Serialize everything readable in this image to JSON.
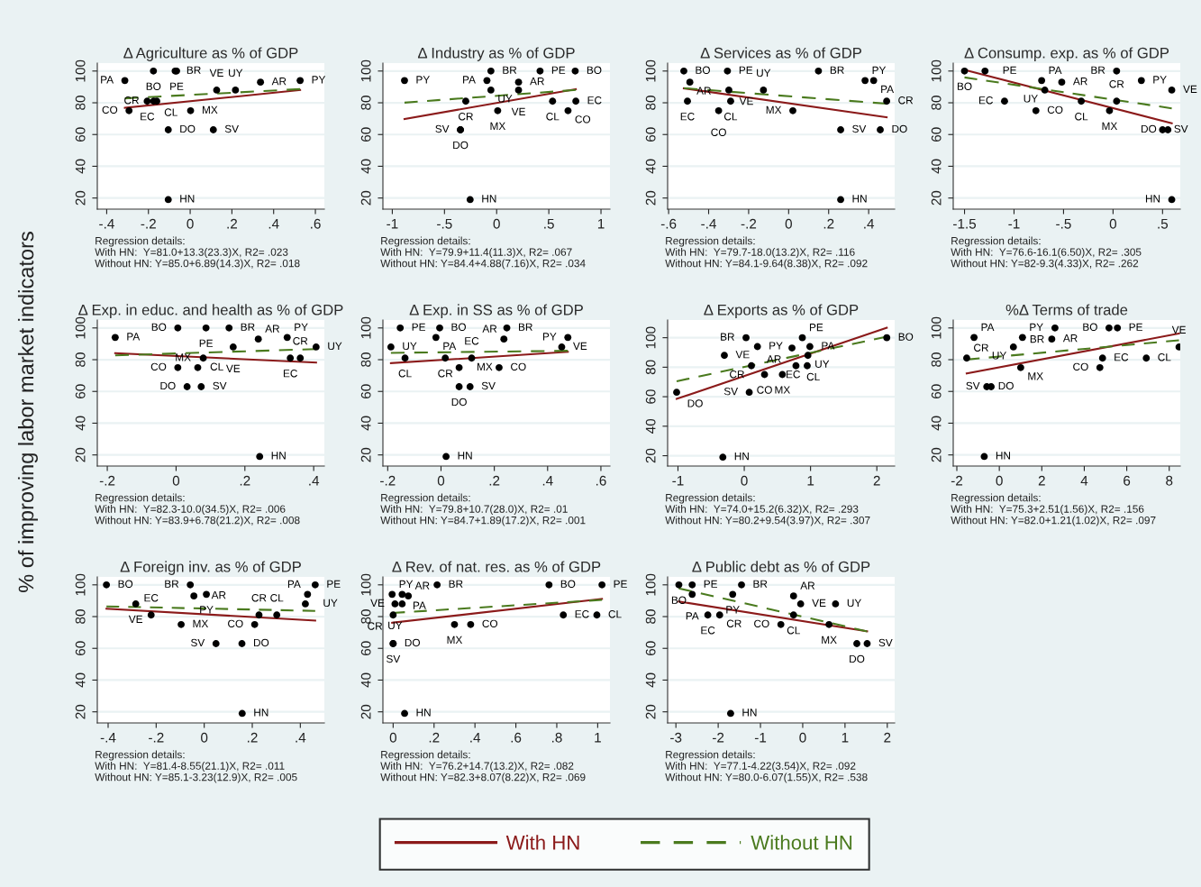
{
  "chart_data": [
    {
      "type": "scatter",
      "title": "Δ Agriculture as % of GDP",
      "xlim": [
        -0.445,
        0.643
      ],
      "xticks": [
        {
          "value": -0.4,
          "label": "-.4"
        },
        {
          "value": -0.2,
          "label": "-.2"
        },
        0,
        {
          "value": 0.2,
          "label": ".2"
        },
        {
          "value": 0.4,
          "label": ".4"
        },
        {
          "value": 0.6,
          "label": ".6"
        }
      ],
      "ylim": [
        13,
        105
      ],
      "yticks": [
        20,
        40,
        60,
        80,
        100
      ],
      "grid": "y",
      "series": [
        {
          "color": "#000000",
          "marker": "circle",
          "x": [
            -0.313,
            -0.176,
            -0.072,
            -0.065,
            -0.293,
            -0.206,
            -0.175,
            -0.16,
            -0.105,
            -0.105,
            0.002,
            0.111,
            0.127,
            0.217,
            0.337,
            0.527
          ],
          "values": [
            94,
            100,
            100,
            100,
            75,
            81,
            81,
            81,
            63,
            19,
            75,
            63,
            88,
            88,
            93,
            94
          ],
          "value_labels": [
            "PA",
            "BO",
            "BR",
            "PE",
            "CO",
            "EC",
            "CL",
            "CR",
            "DO",
            "HN",
            "MX",
            "SV",
            "VE",
            "UY",
            "AR",
            "PY"
          ]
        },
        {
          "type": "line",
          "color": "#8b1a1a",
          "line_style": "solid",
          "x": [
            -0.313,
            0.527
          ],
          "values": [
            76.8,
            88.0
          ]
        },
        {
          "type": "line",
          "color": "#4a7a1e",
          "line_style": "dashed",
          "x": [
            -0.313,
            0.527
          ],
          "values": [
            82.8,
            88.6
          ]
        }
      ],
      "annotations": [
        "Regression details:",
        "With HN:  Y=81.0+13.3(23.3)X, R2= .023",
        "Without HN: Y=85.0+6.89(14.3)X, R2= .018"
      ]
    },
    {
      "type": "scatter",
      "title": "Δ Industry as % of GDP",
      "xlim": [
        -1.09,
        1.086
      ],
      "xticks": [
        -1,
        {
          "value": -0.5,
          "label": "-.5"
        },
        0,
        {
          "value": 0.5,
          "label": ".5"
        },
        1
      ],
      "ylim": [
        13,
        105
      ],
      "yticks": [
        20,
        40,
        60,
        80,
        100
      ],
      "grid": "y",
      "series": [
        {
          "color": "#000000",
          "marker": "circle",
          "x": [
            -0.883,
            -0.055,
            -0.093,
            -0.055,
            0.21,
            0.21,
            0.416,
            0.753,
            -0.296,
            0.536,
            0.759,
            0.684,
            0.01,
            -0.347,
            -0.347,
            -0.254
          ],
          "values": [
            94,
            100,
            94,
            88,
            88,
            93,
            100,
            100,
            81,
            81,
            81,
            75,
            75,
            63,
            63,
            19
          ],
          "value_labels": [
            "PY",
            "BR",
            "PA",
            "UY",
            "VE",
            "AR",
            "PE",
            "BO",
            "CR",
            "CL",
            "EC",
            "CO",
            "MX",
            "SV",
            "DO",
            "HN"
          ]
        },
        {
          "type": "line",
          "color": "#8b1a1a",
          "line_style": "solid",
          "x": [
            -0.883,
            0.759
          ],
          "values": [
            69.8,
            88.6
          ]
        },
        {
          "type": "line",
          "color": "#4a7a1e",
          "line_style": "dashed",
          "x": [
            -0.883,
            0.759
          ],
          "values": [
            80.1,
            88.1
          ]
        }
      ],
      "annotations": [
        "Regression details:",
        "With HN:  Y=79.9+11.4(11.3)X, R2= .067",
        "Without HN: Y=84.4+4.88(7.16)X, R2= .034"
      ]
    },
    {
      "type": "scatter",
      "title": "Δ Services as % of GDP",
      "xlim": [
        -0.605,
        0.53
      ],
      "xticks": [
        {
          "value": -0.6,
          "label": "-.6"
        },
        {
          "value": -0.4,
          "label": "-.4"
        },
        {
          "value": -0.2,
          "label": "-.2"
        },
        0,
        {
          "value": 0.2,
          "label": ".2"
        },
        {
          "value": 0.4,
          "label": ".4"
        }
      ],
      "ylim": [
        13,
        105
      ],
      "yticks": [
        20,
        40,
        60,
        80,
        100
      ],
      "grid": "y",
      "series": [
        {
          "color": "#000000",
          "marker": "circle",
          "x": [
            -0.524,
            -0.494,
            -0.506,
            -0.306,
            -0.299,
            -0.126,
            -0.29,
            -0.35,
            0.021,
            0.149,
            0.382,
            0.425,
            0.49,
            0.26,
            0.458,
            0.26
          ],
          "values": [
            100,
            93,
            81,
            100,
            88,
            88,
            81,
            75,
            75,
            100,
            94,
            94,
            81,
            63,
            63,
            19
          ],
          "value_labels": [
            "BO",
            "AR",
            "EC",
            "PE",
            "VE",
            "UY",
            "CL",
            "CO",
            "MX",
            "BR",
            "PY",
            "PA",
            "CR",
            "SV",
            "DO",
            "HN"
          ]
        },
        {
          "type": "line",
          "color": "#8b1a1a",
          "line_style": "solid",
          "x": [
            -0.524,
            0.49
          ],
          "values": [
            89.1,
            70.9
          ]
        },
        {
          "type": "line",
          "color": "#4a7a1e",
          "line_style": "dashed",
          "x": [
            -0.524,
            0.49
          ],
          "values": [
            89.2,
            79.4
          ]
        }
      ],
      "annotations": [
        "Regression details:",
        "With HN:  Y=79.7-18.0(13.2)X, R2= .116",
        "Without HN: Y=84.1-9.64(8.38)X, R2= .092"
      ]
    },
    {
      "type": "scatter",
      "title": "Δ Consump. exp. as % of GDP",
      "xlim": [
        -1.614,
        0.679
      ],
      "xticks": [
        {
          "value": -1.5,
          "label": "-1.5"
        },
        -1,
        {
          "value": -0.5,
          "label": "-.5"
        },
        0,
        {
          "value": 0.5,
          "label": ".5"
        }
      ],
      "ylim": [
        13,
        105
      ],
      "yticks": [
        20,
        40,
        60,
        80,
        100
      ],
      "grid": "y",
      "series": [
        {
          "color": "#000000",
          "marker": "circle",
          "x": [
            -1.5,
            -1.293,
            -0.721,
            -0.689,
            -0.518,
            -1.096,
            -0.779,
            -0.321,
            -0.036,
            0.036,
            0.036,
            0.286,
            0.593,
            0.5,
            0.554,
            0.593
          ],
          "values": [
            100,
            100,
            94,
            88,
            93,
            81,
            75,
            81,
            75,
            100,
            81,
            94,
            88,
            63,
            63,
            19
          ],
          "value_labels": [
            "BO",
            "PE",
            "PA",
            "UY",
            "AR",
            "EC",
            "CO",
            "CL",
            "MX",
            "BR",
            "CR",
            "PY",
            "VE",
            "SV",
            "DO",
            "HN"
          ]
        },
        {
          "type": "line",
          "color": "#8b1a1a",
          "line_style": "solid",
          "x": [
            -1.5,
            0.593
          ],
          "values": [
            100.8,
            67.1
          ]
        },
        {
          "type": "line",
          "color": "#4a7a1e",
          "line_style": "dashed",
          "x": [
            -1.5,
            0.593
          ],
          "values": [
            96.0,
            76.5
          ]
        }
      ],
      "annotations": [
        "Regression details:",
        "With HN:  Y=76.6-16.1(6.50)X, R2= .305",
        "Without HN: Y=82-9.3(4.33)X, R2= .262"
      ]
    },
    {
      "type": "scatter",
      "title": "Δ Exp. in educ. and health as % of GDP",
      "ylabel": "% of improving labor market indicators",
      "xlim": [
        -0.229,
        0.431
      ],
      "xticks": [
        {
          "value": -0.2,
          "label": "-.2"
        },
        0,
        {
          "value": 0.2,
          "label": ".2"
        },
        {
          "value": 0.4,
          "label": ".4"
        }
      ],
      "ylim": [
        13,
        105
      ],
      "yticks": [
        20,
        40,
        60,
        80,
        100
      ],
      "grid": "y",
      "series": [
        {
          "color": "#000000",
          "marker": "circle",
          "x": [
            -0.177,
            0.005,
            0.087,
            0.154,
            0.166,
            0.079,
            0.005,
            0.063,
            0.032,
            0.073,
            0.239,
            0.323,
            0.407,
            0.332,
            0.361,
            0.243
          ],
          "values": [
            94,
            100,
            100,
            100,
            88,
            81,
            75,
            75,
            63,
            63,
            93,
            94,
            88,
            81,
            81,
            19
          ],
          "value_labels": [
            "PA",
            "BO",
            "PE",
            "BR",
            "VE",
            "CL",
            "CO",
            "MX",
            "DO",
            "SV",
            "AR",
            "PY",
            "UY",
            "EC",
            "CR",
            "HN"
          ]
        },
        {
          "type": "line",
          "color": "#8b1a1a",
          "line_style": "solid",
          "x": [
            -0.177,
            0.407
          ],
          "values": [
            84.1,
            78.2
          ]
        },
        {
          "type": "line",
          "color": "#4a7a1e",
          "line_style": "dashed",
          "x": [
            -0.177,
            0.407
          ],
          "values": [
            82.7,
            86.7
          ]
        }
      ],
      "annotations": [
        "Regression details:",
        "With HN:  Y=82.3-10.0(34.5)X, R2= .006",
        "Without HN: Y=83.9+6.78(21.2)X, R2= .008"
      ]
    },
    {
      "type": "scatter",
      "title": "Δ Exp. in SS as % of GDP",
      "xlim": [
        -0.218,
        0.634
      ],
      "xticks": [
        {
          "value": -0.2,
          "label": "-.2"
        },
        0,
        {
          "value": 0.2,
          "label": ".2"
        },
        {
          "value": 0.4,
          "label": ".4"
        },
        {
          "value": 0.6,
          "label": ".6"
        }
      ],
      "ylim": [
        13,
        105
      ],
      "yticks": [
        20,
        40,
        60,
        80,
        100
      ],
      "grid": "y",
      "series": [
        {
          "color": "#000000",
          "marker": "circle",
          "x": [
            -0.188,
            -0.153,
            -0.005,
            -0.019,
            -0.135,
            0.016,
            0.115,
            0.068,
            0.218,
            0.068,
            0.109,
            0.247,
            0.236,
            0.453,
            0.476,
            0.019
          ],
          "values": [
            88,
            100,
            100,
            94,
            81,
            81,
            81,
            75,
            75,
            63,
            63,
            100,
            93,
            88,
            94,
            19
          ],
          "value_labels": [
            "UY",
            "PE",
            "BO",
            "PA",
            "CL",
            "CR",
            "EC",
            "MX",
            "CO",
            "DO",
            "SV",
            "BR",
            "AR",
            "VE",
            "PY",
            "HN"
          ]
        },
        {
          "type": "line",
          "color": "#8b1a1a",
          "line_style": "solid",
          "x": [
            -0.188,
            0.476
          ],
          "values": [
            77.8,
            84.9
          ]
        },
        {
          "type": "line",
          "color": "#4a7a1e",
          "line_style": "dashed",
          "x": [
            -0.188,
            0.476
          ],
          "values": [
            84.3,
            85.6
          ]
        }
      ],
      "annotations": [
        "Regression details:",
        "With HN:  Y=79.8+10.7(28.0)X, R2= .01",
        "Without HN: Y=84.7+1.89(17.2)X, R2= .001"
      ]
    },
    {
      "type": "scatter",
      "title": "Δ Exports as % of GDP",
      "xlim": [
        -1.156,
        2.269
      ],
      "xticks": [
        -1,
        0,
        1,
        2
      ],
      "ylim": [
        13,
        112
      ],
      "yticks": [
        20,
        40,
        60,
        80,
        100
      ],
      "grid": "y",
      "series": [
        {
          "color": "#000000",
          "marker": "circle",
          "x": [
            -1.02,
            -0.323,
            -0.3,
            0.027,
            0.199,
            0.108,
            0.306,
            0.575,
            0.075,
            0.72,
            0.876,
            0.96,
            0.99,
            0.78,
            0.95,
            2.15
          ],
          "values": [
            63,
            19,
            88,
            100,
            94,
            81,
            75,
            75,
            63,
            93,
            100,
            88,
            94,
            81,
            81,
            100
          ],
          "value_labels": [
            "DO",
            "HN",
            "VE",
            "BR",
            "PY",
            "CR",
            "CO",
            "MX",
            "SV",
            "AR",
            "PE",
            "UY",
            "PA",
            "CL",
            "EC",
            "BO"
          ]
        },
        {
          "type": "line",
          "color": "#8b1a1a",
          "line_style": "solid",
          "x": [
            -1.02,
            2.15
          ],
          "values": [
            58.5,
            106.7
          ]
        },
        {
          "type": "line",
          "color": "#4a7a1e",
          "line_style": "dashed",
          "x": [
            -1.02,
            2.15
          ],
          "values": [
            70.5,
            100.7
          ]
        }
      ],
      "annotations": [
        "Regression details:",
        "With HN:  Y=74.0+15.2(6.32)X, R2= .293",
        "Without HN: Y=80.2+9.54(3.97)X, R2= .307"
      ]
    },
    {
      "type": "scatter",
      "title": "%Δ Terms of trade",
      "xlim": [
        -2.17,
        8.52
      ],
      "xticks": [
        -2,
        0,
        2,
        4,
        6,
        8
      ],
      "ylim": [
        13,
        105
      ],
      "yticks": [
        20,
        40,
        60,
        80,
        100
      ],
      "grid": "y",
      "series": [
        {
          "color": "#000000",
          "marker": "circle",
          "x": [
            -1.536,
            -1.19,
            -0.59,
            -0.385,
            -0.71,
            0.663,
            1.09,
            1.007,
            2.47,
            2.62,
            5.165,
            5.56,
            4.86,
            4.735,
            6.92,
            8.46
          ],
          "values": [
            81,
            94,
            63,
            63,
            19,
            88,
            94,
            75,
            93,
            100,
            100,
            100,
            81,
            75,
            81,
            88
          ],
          "value_labels": [
            "CR",
            "PA",
            "DO",
            "SV",
            "HN",
            "UY",
            "PY",
            "MX",
            "AR",
            "BR",
            "BO",
            "PE",
            "EC",
            "CO",
            "CL",
            "VE"
          ]
        },
        {
          "type": "line",
          "color": "#8b1a1a",
          "line_style": "solid",
          "x": [
            -1.536,
            8.46
          ],
          "values": [
            71.4,
            96.5
          ]
        },
        {
          "type": "line",
          "color": "#4a7a1e",
          "line_style": "dashed",
          "x": [
            -1.536,
            8.46
          ],
          "values": [
            80.1,
            92.2
          ]
        }
      ],
      "annotations": [
        "Regression details:",
        "With HN:  Y=75.3+2.51(1.56)X, R2= .156",
        "Without HN: Y=82.0+1.21(1.02)X, R2= .097"
      ]
    },
    {
      "type": "scatter",
      "title": "Δ Foreign inv. as % of GDP",
      "xlim": [
        -0.445,
        0.5
      ],
      "xticks": [
        {
          "value": -0.4,
          "label": "-.4"
        },
        {
          "value": -0.2,
          "label": "-.2"
        },
        0,
        {
          "value": 0.2,
          "label": ".2"
        },
        {
          "value": 0.4,
          "label": ".4"
        }
      ],
      "ylim": [
        13,
        105
      ],
      "yticks": [
        20,
        40,
        60,
        80,
        100
      ],
      "grid": "y",
      "series": [
        {
          "color": "#000000",
          "marker": "circle",
          "x": [
            -0.407,
            -0.285,
            -0.221,
            -0.096,
            -0.058,
            -0.043,
            0.009,
            0.049,
            0.157,
            0.158,
            0.21,
            0.228,
            0.302,
            0.421,
            0.43,
            0.462
          ],
          "values": [
            100,
            88,
            81,
            75,
            100,
            93,
            94,
            63,
            63,
            19,
            75,
            81,
            81,
            88,
            94,
            100
          ],
          "value_labels": [
            "BO",
            "VE",
            "EC",
            "MX",
            "BR",
            "AR",
            "PY",
            "SV",
            "DO",
            "HN",
            "CO",
            "CR",
            "CL",
            "UY",
            "PA",
            "PE"
          ]
        },
        {
          "type": "line",
          "color": "#8b1a1a",
          "line_style": "solid",
          "x": [
            -0.407,
            0.462
          ],
          "values": [
            84.9,
            77.5
          ]
        },
        {
          "type": "line",
          "color": "#4a7a1e",
          "line_style": "dashed",
          "x": [
            -0.407,
            0.462
          ],
          "values": [
            86.4,
            83.6
          ]
        }
      ],
      "annotations": [
        "Regression details:",
        "With HN:  Y=81.4-8.55(21.1)X, R2= .011",
        "Without HN: Y=85.1-3.23(12.9)X, R2= .005"
      ]
    },
    {
      "type": "scatter",
      "title": "Δ Rev. of nat. res. as % of GDP",
      "xlim": [
        -0.05,
        1.06
      ],
      "xticks": [
        0,
        {
          "value": 0.2,
          "label": ".2"
        },
        {
          "value": 0.4,
          "label": ".4"
        },
        {
          "value": 0.6,
          "label": ".6"
        },
        {
          "value": 0.8,
          "label": ".8"
        },
        1
      ],
      "ylim": [
        13,
        105
      ],
      "yticks": [
        20,
        40,
        60,
        80,
        100
      ],
      "grid": "y",
      "series": [
        {
          "color": "#000000",
          "marker": "circle",
          "x": [
            -0.005,
            0.044,
            0.074,
            0.009,
            0.044,
            0.0,
            0.0,
            0.0,
            0.056,
            0.215,
            0.3,
            0.379,
            0.762,
            0.832,
            0.996,
            1.021
          ],
          "values": [
            94,
            94,
            93,
            88,
            88,
            81,
            63,
            63,
            19,
            100,
            75,
            75,
            100,
            81,
            81,
            100
          ],
          "value_labels": [
            "PY",
            "PA",
            "AR",
            "UY",
            "VE",
            "CR",
            "DO",
            "SV",
            "HN",
            "BR",
            "MX",
            "CO",
            "BO",
            "EC",
            "CL",
            "PE"
          ]
        },
        {
          "type": "line",
          "color": "#8b1a1a",
          "line_style": "solid",
          "x": [
            -0.005,
            1.021
          ],
          "values": [
            76.1,
            91.2
          ]
        },
        {
          "type": "line",
          "color": "#4a7a1e",
          "line_style": "dashed",
          "x": [
            -0.005,
            1.021
          ],
          "values": [
            82.3,
            90.5
          ]
        }
      ],
      "annotations": [
        "Regression details:",
        "With HN:  Y=76.2+14.7(13.2)X, R2= .082",
        "Without HN: Y=82.3+8.07(8.22)X, R2= .069"
      ]
    },
    {
      "type": "scatter",
      "title": "Δ Public debt as % of GDP",
      "xlim": [
        -3.196,
        2.175
      ],
      "xticks": [
        -3,
        -2,
        -1,
        0,
        1,
        2
      ],
      "ylim": [
        13,
        105
      ],
      "yticks": [
        20,
        40,
        60,
        80,
        100
      ],
      "grid": "y",
      "legend": "bottom",
      "series": [
        {
          "color": "#000000",
          "marker": "circle",
          "x": [
            -2.93,
            -2.615,
            -2.615,
            -1.448,
            -1.657,
            -2.245,
            -1.965,
            -1.706,
            -0.217,
            0.776,
            -0.049,
            -0.217,
            -0.517,
            0.622,
            1.28,
            1.524
          ],
          "values": [
            100,
            100,
            94,
            100,
            94,
            81,
            81,
            19,
            93,
            88,
            88,
            81,
            75,
            75,
            63,
            63
          ],
          "value_labels": [
            "BO",
            "PE",
            "PA",
            "BR",
            "PY",
            "EC",
            "CR",
            "HN",
            "AR",
            "UY",
            "VE",
            "CL",
            "CO",
            "MX",
            "DO",
            "SV"
          ]
        },
        {
          "type": "line",
          "name": "With HN",
          "color": "#8b1a1a",
          "line_style": "solid",
          "x": [
            -2.93,
            1.524
          ],
          "values": [
            89.5,
            70.7
          ]
        },
        {
          "type": "line",
          "name": "Without HN",
          "color": "#4a7a1e",
          "line_style": "dashed",
          "x": [
            -2.93,
            1.524
          ],
          "values": [
            97.8,
            70.7
          ]
        }
      ],
      "annotations": [
        "Regression details:",
        "With HN:  Y=77.1-4.22(3.54)X, R2= .092",
        "Without HN: Y=80.0-6.07(1.55)X, R2= .538"
      ]
    }
  ]
}
